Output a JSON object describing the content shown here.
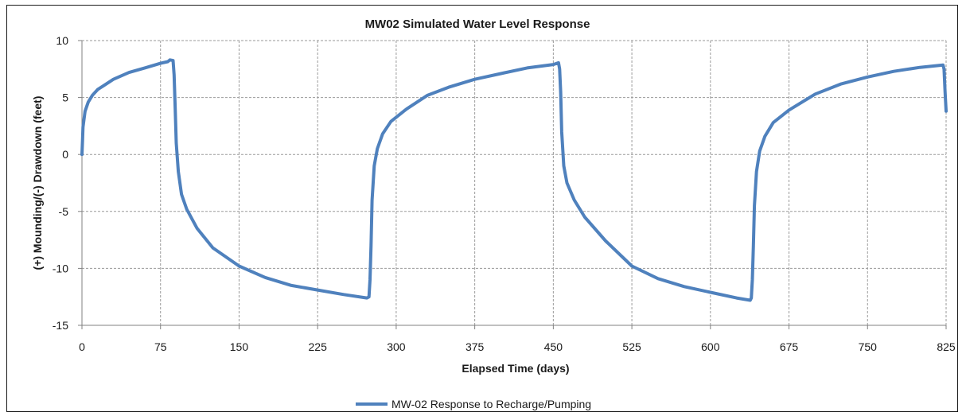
{
  "chart_data": {
    "type": "line",
    "title": "MW02 Simulated Water Level Response",
    "xlabel": "Elapsed Time (days)",
    "ylabel": "(+) Mounding/(-) Drawdown (feet)",
    "xlim": [
      0,
      825
    ],
    "ylim": [
      -15,
      10
    ],
    "x_ticks": [
      "0",
      "75",
      "150",
      "225",
      "300",
      "375",
      "450",
      "525",
      "600",
      "675",
      "750",
      "825"
    ],
    "y_ticks": [
      "10",
      "5",
      "0",
      "-5",
      "-10",
      "-15"
    ],
    "grid": true,
    "legend_position": "bottom",
    "series": [
      {
        "name": "MW-02 Response to Recharge/Pumping",
        "color": "#4f81bd",
        "points": [
          [
            0,
            0
          ],
          [
            0.5,
            1.2
          ],
          [
            1,
            2.4
          ],
          [
            3,
            3.8
          ],
          [
            6,
            4.6
          ],
          [
            10,
            5.2
          ],
          [
            15,
            5.7
          ],
          [
            20,
            6.0
          ],
          [
            30,
            6.6
          ],
          [
            45,
            7.2
          ],
          [
            60,
            7.6
          ],
          [
            75,
            8.0
          ],
          [
            82,
            8.15
          ],
          [
            84,
            8.3
          ],
          [
            87,
            8.25
          ],
          [
            88,
            7.0
          ],
          [
            89,
            4.0
          ],
          [
            90,
            1.0
          ],
          [
            92,
            -1.5
          ],
          [
            95,
            -3.5
          ],
          [
            100,
            -4.8
          ],
          [
            110,
            -6.5
          ],
          [
            125,
            -8.2
          ],
          [
            150,
            -9.8
          ],
          [
            175,
            -10.8
          ],
          [
            200,
            -11.5
          ],
          [
            225,
            -11.9
          ],
          [
            250,
            -12.3
          ],
          [
            272,
            -12.6
          ],
          [
            274,
            -12.5
          ],
          [
            275,
            -11.0
          ],
          [
            276,
            -8.0
          ],
          [
            277,
            -4.0
          ],
          [
            279,
            -1.0
          ],
          [
            282,
            0.5
          ],
          [
            287,
            1.8
          ],
          [
            295,
            2.9
          ],
          [
            310,
            4.0
          ],
          [
            330,
            5.2
          ],
          [
            350,
            5.9
          ],
          [
            375,
            6.6
          ],
          [
            400,
            7.1
          ],
          [
            425,
            7.6
          ],
          [
            450,
            7.9
          ],
          [
            455,
            8.05
          ],
          [
            456,
            7.5
          ],
          [
            457,
            5.5
          ],
          [
            458,
            2.0
          ],
          [
            460,
            -1.0
          ],
          [
            463,
            -2.5
          ],
          [
            470,
            -4.0
          ],
          [
            480,
            -5.5
          ],
          [
            500,
            -7.6
          ],
          [
            525,
            -9.8
          ],
          [
            550,
            -10.9
          ],
          [
            575,
            -11.6
          ],
          [
            600,
            -12.1
          ],
          [
            625,
            -12.6
          ],
          [
            638,
            -12.8
          ],
          [
            639,
            -12.6
          ],
          [
            640,
            -11.0
          ],
          [
            641,
            -8.0
          ],
          [
            642,
            -4.5
          ],
          [
            644,
            -1.5
          ],
          [
            647,
            0.3
          ],
          [
            652,
            1.6
          ],
          [
            660,
            2.8
          ],
          [
            675,
            3.9
          ],
          [
            700,
            5.3
          ],
          [
            725,
            6.2
          ],
          [
            750,
            6.8
          ],
          [
            775,
            7.3
          ],
          [
            800,
            7.65
          ],
          [
            822,
            7.85
          ],
          [
            823,
            7.5
          ],
          [
            824,
            5.5
          ],
          [
            825,
            3.8
          ]
        ]
      }
    ]
  }
}
